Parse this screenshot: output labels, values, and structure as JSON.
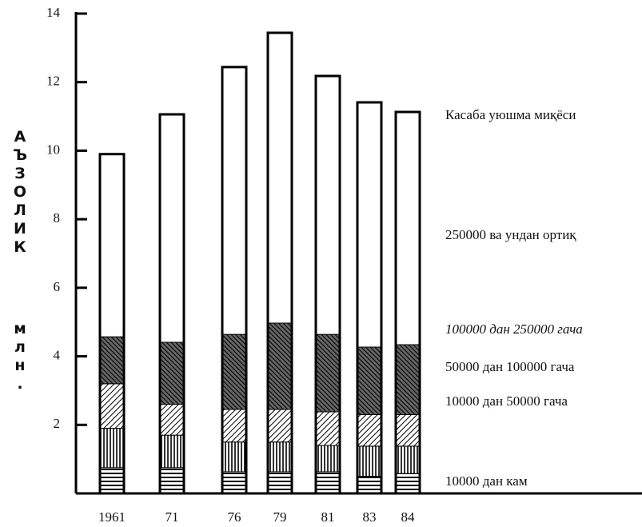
{
  "chart_data": {
    "type": "stacked-bar",
    "y_label": "АЪЗОЛИК",
    "y_unit": "млн.",
    "total_label": "Касаба уюшма миқёси",
    "categories": [
      "1961",
      "71",
      "76",
      "79",
      "81",
      "83",
      "84"
    ],
    "series": [
      {
        "name": "10000 дан кам",
        "color": "#000000",
        "pattern": "horizontal",
        "values": [
          0.75,
          0.75,
          0.63,
          0.63,
          0.63,
          0.5,
          0.58
        ]
      },
      {
        "name": "10000 дан 50000 гача",
        "color": "#000000",
        "pattern": "vertical",
        "values": [
          1.15,
          0.95,
          0.87,
          0.87,
          0.77,
          0.88,
          0.8
        ]
      },
      {
        "name": "50000 дан 100000 гача",
        "color": "#000000",
        "pattern": "diagonal-right",
        "values": [
          1.3,
          0.9,
          0.95,
          0.95,
          0.98,
          0.92,
          0.92
        ]
      },
      {
        "name": "100000 дан 250000 гача",
        "color": "#000000",
        "pattern": "diagonal-left",
        "values": [
          1.37,
          1.81,
          2.19,
          2.52,
          2.26,
          1.97,
          2.04
        ]
      },
      {
        "name": "250000 ва ундан ортиқ",
        "color": "#ffffff",
        "pattern": "none",
        "values": [
          5.33,
          6.65,
          7.8,
          8.47,
          7.54,
          7.14,
          6.79
        ]
      }
    ],
    "ylim": [
      0,
      14
    ],
    "yticks": [
      2,
      4,
      6,
      8,
      10,
      12,
      14
    ]
  }
}
